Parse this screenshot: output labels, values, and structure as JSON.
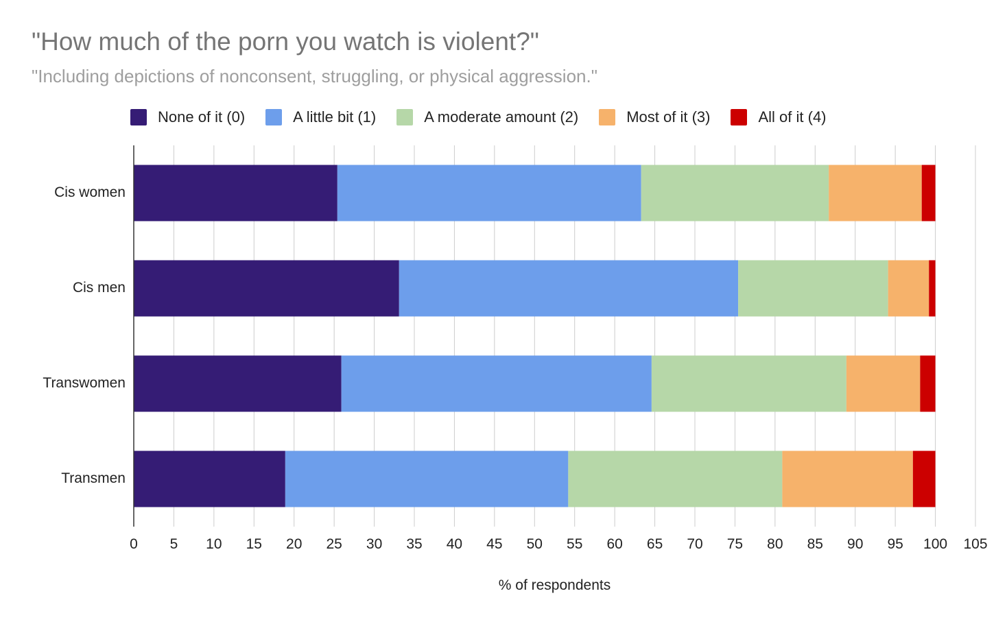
{
  "chart_data": {
    "type": "bar",
    "orientation": "horizontal",
    "stacked": true,
    "title": "\"How much of the porn you watch is violent?\"",
    "subtitle": "\"Including depictions of nonconsent, struggling, or physical aggression.\"",
    "xlabel": "% of respondents",
    "ylabel": "",
    "xlim": [
      0,
      105
    ],
    "xticks": [
      "0",
      "5",
      "10",
      "15",
      "20",
      "25",
      "30",
      "35",
      "40",
      "45",
      "50",
      "55",
      "60",
      "65",
      "70",
      "75",
      "80",
      "85",
      "90",
      "95",
      "100",
      "105"
    ],
    "grid": true,
    "legend_position": "top",
    "categories": [
      "Cis women",
      "Cis men",
      "Transwomen",
      "Transmen"
    ],
    "series": [
      {
        "name": "None of it (0)",
        "color": "#351c75",
        "values": [
          25.4,
          33.1,
          25.9,
          18.9
        ]
      },
      {
        "name": "A little bit (1)",
        "color": "#6d9eeb",
        "values": [
          37.9,
          42.3,
          38.7,
          35.3
        ]
      },
      {
        "name": "A moderate amount (2)",
        "color": "#b6d7a8",
        "values": [
          23.4,
          18.7,
          24.3,
          26.7
        ]
      },
      {
        "name": "Most of it (3)",
        "color": "#f6b26b",
        "values": [
          11.6,
          5.1,
          9.2,
          16.3
        ]
      },
      {
        "name": "All of it (4)",
        "color": "#cc0000",
        "values": [
          1.7,
          0.8,
          1.9,
          2.8
        ]
      }
    ]
  }
}
